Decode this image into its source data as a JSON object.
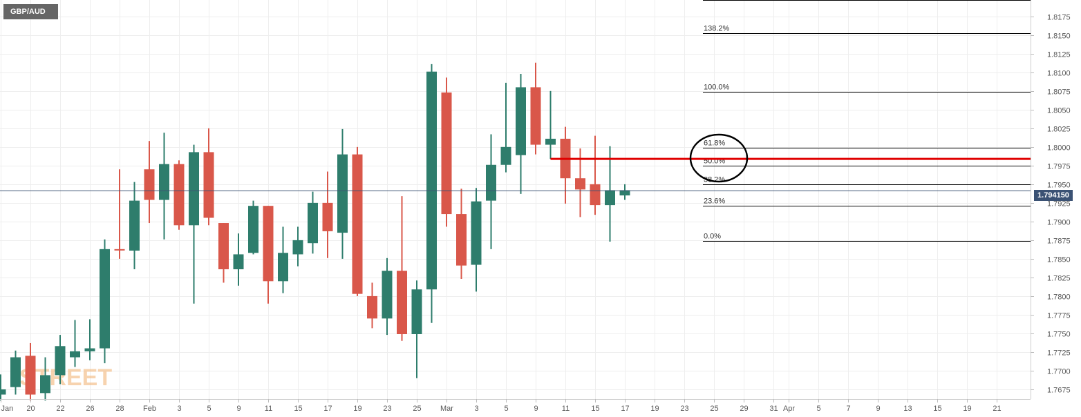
{
  "symbol": "GBP/AUD",
  "watermark": "STREET",
  "current_price_label": "1.794150",
  "colors": {
    "up": "#2e7d6c",
    "down": "#d9574a",
    "grid": "#eeeeee",
    "price_line": "#3b5274",
    "resistance": "#e00000",
    "axis_text": "#555555"
  },
  "chart_data": {
    "type": "candlestick",
    "title": "GBP/AUD",
    "y_range": [
      1.7662,
      1.8197
    ],
    "y_ticks": [
      "1.7675",
      "1.7700",
      "1.7725",
      "1.7750",
      "1.7775",
      "1.7800",
      "1.7825",
      "1.7850",
      "1.7875",
      "1.7900",
      "1.7925",
      "1.7950",
      "1.7975",
      "1.8000",
      "1.8025",
      "1.8050",
      "1.8075",
      "1.8100",
      "1.8125",
      "1.8150",
      "1.8175"
    ],
    "x_ticks": [
      {
        "label": "Jan",
        "i": 0
      },
      {
        "label": "20",
        "i": 2
      },
      {
        "label": "22",
        "i": 4
      },
      {
        "label": "26",
        "i": 6
      },
      {
        "label": "28",
        "i": 8
      },
      {
        "label": "Feb",
        "i": 10
      },
      {
        "label": "3",
        "i": 12
      },
      {
        "label": "5",
        "i": 14
      },
      {
        "label": "9",
        "i": 16
      },
      {
        "label": "11",
        "i": 18
      },
      {
        "label": "15",
        "i": 20
      },
      {
        "label": "17",
        "i": 22
      },
      {
        "label": "19",
        "i": 24
      },
      {
        "label": "23",
        "i": 26
      },
      {
        "label": "25",
        "i": 28
      },
      {
        "label": "Mar",
        "i": 30
      },
      {
        "label": "3",
        "i": 32
      },
      {
        "label": "5",
        "i": 34
      },
      {
        "label": "9",
        "i": 36
      },
      {
        "label": "11",
        "i": 38
      },
      {
        "label": "15",
        "i": 40
      },
      {
        "label": "17",
        "i": 42
      },
      {
        "label": "19",
        "i": 44
      },
      {
        "label": "23",
        "i": 46
      },
      {
        "label": "25",
        "i": 48
      },
      {
        "label": "29",
        "i": 50
      },
      {
        "label": "31",
        "i": 52
      },
      {
        "label": "Apr",
        "i": 53
      },
      {
        "label": "5",
        "i": 55
      },
      {
        "label": "7",
        "i": 57
      },
      {
        "label": "9",
        "i": 59
      },
      {
        "label": "13",
        "i": 61
      },
      {
        "label": "15",
        "i": 63
      },
      {
        "label": "19",
        "i": 65
      },
      {
        "label": "21",
        "i": 67
      }
    ],
    "candles": [
      {
        "i": 0,
        "o": 1.7668,
        "h": 1.7695,
        "l": 1.766,
        "c": 1.7675
      },
      {
        "i": 1,
        "o": 1.7678,
        "h": 1.7727,
        "l": 1.7668,
        "c": 1.7718
      },
      {
        "i": 2,
        "o": 1.772,
        "h": 1.7737,
        "l": 1.766,
        "c": 1.7668
      },
      {
        "i": 3,
        "o": 1.767,
        "h": 1.7718,
        "l": 1.766,
        "c": 1.7694
      },
      {
        "i": 4,
        "o": 1.7694,
        "h": 1.7748,
        "l": 1.7682,
        "c": 1.7733
      },
      {
        "i": 5,
        "o": 1.7718,
        "h": 1.7768,
        "l": 1.7705,
        "c": 1.7726
      },
      {
        "i": 6,
        "o": 1.7726,
        "h": 1.7769,
        "l": 1.7714,
        "c": 1.773
      },
      {
        "i": 7,
        "o": 1.773,
        "h": 1.7876,
        "l": 1.771,
        "c": 1.7863
      },
      {
        "i": 8,
        "o": 1.7863,
        "h": 1.797,
        "l": 1.785,
        "c": 1.7862
      },
      {
        "i": 9,
        "o": 1.7861,
        "h": 1.7953,
        "l": 1.7836,
        "c": 1.7928
      },
      {
        "i": 10,
        "o": 1.797,
        "h": 1.8008,
        "l": 1.7898,
        "c": 1.7929
      },
      {
        "i": 11,
        "o": 1.7929,
        "h": 1.8019,
        "l": 1.7876,
        "c": 1.7977
      },
      {
        "i": 12,
        "o": 1.7977,
        "h": 1.7982,
        "l": 1.7889,
        "c": 1.7895
      },
      {
        "i": 13,
        "o": 1.7895,
        "h": 1.8003,
        "l": 1.779,
        "c": 1.7993
      },
      {
        "i": 14,
        "o": 1.7993,
        "h": 1.8025,
        "l": 1.7895,
        "c": 1.7905
      },
      {
        "i": 15,
        "o": 1.7898,
        "h": 1.7898,
        "l": 1.7818,
        "c": 1.7836
      },
      {
        "i": 16,
        "o": 1.7836,
        "h": 1.7884,
        "l": 1.7814,
        "c": 1.7856
      },
      {
        "i": 17,
        "o": 1.7858,
        "h": 1.7928,
        "l": 1.7856,
        "c": 1.7921
      },
      {
        "i": 18,
        "o": 1.7921,
        "h": 1.7921,
        "l": 1.779,
        "c": 1.782
      },
      {
        "i": 19,
        "o": 1.782,
        "h": 1.7893,
        "l": 1.7804,
        "c": 1.7858
      },
      {
        "i": 20,
        "o": 1.7856,
        "h": 1.7893,
        "l": 1.784,
        "c": 1.7875
      },
      {
        "i": 21,
        "o": 1.7871,
        "h": 1.794,
        "l": 1.7857,
        "c": 1.7925
      },
      {
        "i": 22,
        "o": 1.7925,
        "h": 1.7967,
        "l": 1.7851,
        "c": 1.7887
      },
      {
        "i": 23,
        "o": 1.7885,
        "h": 1.8024,
        "l": 1.785,
        "c": 1.799
      },
      {
        "i": 24,
        "o": 1.799,
        "h": 1.8,
        "l": 1.78,
        "c": 1.7803
      },
      {
        "i": 25,
        "o": 1.78,
        "h": 1.7818,
        "l": 1.7757,
        "c": 1.777
      },
      {
        "i": 26,
        "o": 1.777,
        "h": 1.7851,
        "l": 1.7748,
        "c": 1.7834
      },
      {
        "i": 27,
        "o": 1.7834,
        "h": 1.7934,
        "l": 1.774,
        "c": 1.7749
      },
      {
        "i": 28,
        "o": 1.7749,
        "h": 1.7821,
        "l": 1.769,
        "c": 1.7809
      },
      {
        "i": 29,
        "o": 1.7809,
        "h": 1.8111,
        "l": 1.7764,
        "c": 1.8101
      },
      {
        "i": 30,
        "o": 1.8073,
        "h": 1.8093,
        "l": 1.7893,
        "c": 1.791
      },
      {
        "i": 31,
        "o": 1.791,
        "h": 1.7944,
        "l": 1.7823,
        "c": 1.7841
      },
      {
        "i": 32,
        "o": 1.7842,
        "h": 1.7945,
        "l": 1.7806,
        "c": 1.7927
      },
      {
        "i": 33,
        "o": 1.7928,
        "h": 1.8017,
        "l": 1.7863,
        "c": 1.7976
      },
      {
        "i": 34,
        "o": 1.7976,
        "h": 1.8086,
        "l": 1.7966,
        "c": 1.8
      },
      {
        "i": 35,
        "o": 1.7989,
        "h": 1.8098,
        "l": 1.7937,
        "c": 1.808
      },
      {
        "i": 36,
        "o": 1.808,
        "h": 1.8113,
        "l": 1.799,
        "c": 1.8003
      },
      {
        "i": 37,
        "o": 1.8003,
        "h": 1.8075,
        "l": 1.7984,
        "c": 1.8011
      },
      {
        "i": 38,
        "o": 1.8011,
        "h": 1.8027,
        "l": 1.7924,
        "c": 1.7958
      },
      {
        "i": 39,
        "o": 1.7958,
        "h": 1.7998,
        "l": 1.7906,
        "c": 1.7943
      },
      {
        "i": 40,
        "o": 1.795,
        "h": 1.8015,
        "l": 1.7909,
        "c": 1.7922
      },
      {
        "i": 41,
        "o": 1.7922,
        "h": 1.8001,
        "l": 1.7873,
        "c": 1.7942
      },
      {
        "i": 42,
        "o": 1.7935,
        "h": 1.795,
        "l": 1.7929,
        "c": 1.7942
      }
    ],
    "fib_levels": [
      {
        "label": "138.2%",
        "value": 1.8153
      },
      {
        "label": "100.0%",
        "value": 1.8074
      },
      {
        "label": "61.8%",
        "value": 1.7999
      },
      {
        "label": "50.0%",
        "value": 1.7975
      },
      {
        "label": "38.2%",
        "value": 1.795
      },
      {
        "label": "23.6%",
        "value": 1.7921
      },
      {
        "label": "0.0%",
        "value": 1.7874
      }
    ],
    "fib_top_line": 1.8197,
    "resistance_level": 1.7984,
    "resistance_from_i": 37,
    "current_price": 1.79415,
    "grid": true
  }
}
